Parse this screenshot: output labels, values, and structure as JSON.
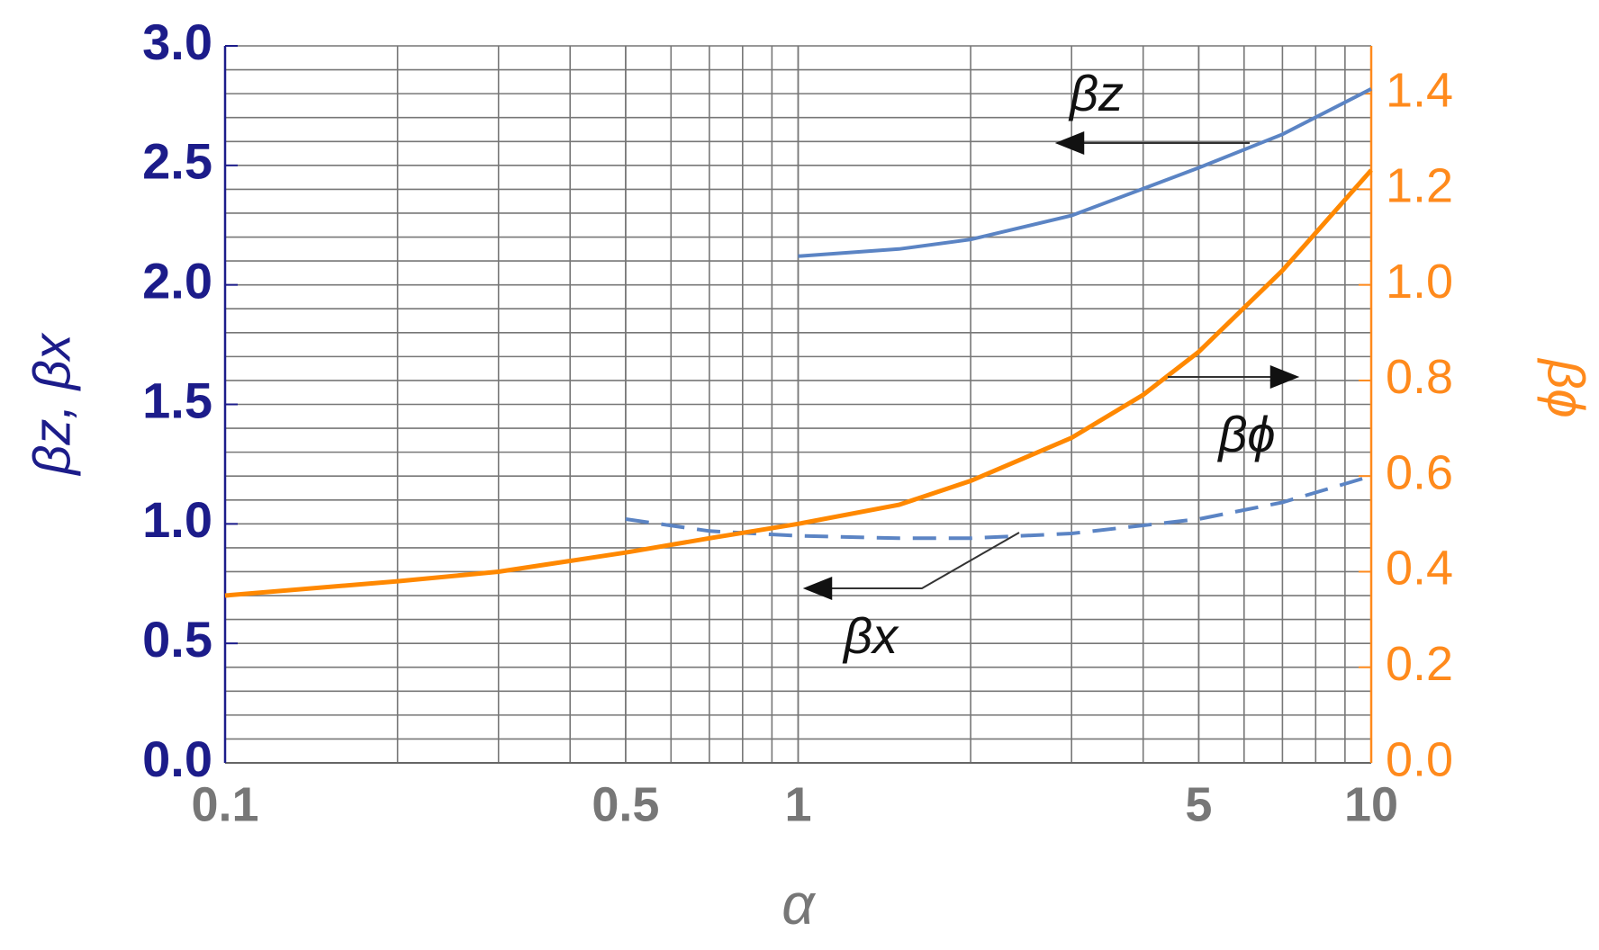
{
  "chart_data": {
    "type": "line",
    "x_label": "α",
    "y_label": "βz, βx",
    "y2_label": "βϕ",
    "xscale": "log",
    "xlim": [
      0.1,
      10
    ],
    "xticks": [
      0.1,
      0.5,
      1,
      5,
      10
    ],
    "ylim": [
      0,
      3
    ],
    "yticks": [
      {
        "value": 0,
        "label": "0.0"
      },
      0.5,
      {
        "value": 1,
        "label": "1.0"
      },
      1.5,
      {
        "value": 2,
        "label": "2.0"
      },
      2.5,
      {
        "value": 3,
        "label": "3.0"
      }
    ],
    "y2lim": [
      0,
      1.5
    ],
    "y2ticks": [
      {
        "value": 0,
        "label": "0.0"
      },
      0.2,
      0.4,
      0.6,
      0.8,
      {
        "value": 1,
        "label": "1.0"
      },
      1.2,
      1.4
    ],
    "grid": true,
    "y_color": "#1c1c8a",
    "y2_color": "#ff8a1c",
    "series": [
      {
        "name": "βz",
        "color": "#5b84c4",
        "dash": false,
        "x": [
          1,
          1.5,
          2,
          3,
          5,
          7,
          10
        ],
        "values": [
          2.12,
          2.15,
          2.19,
          2.29,
          2.49,
          2.63,
          2.82
        ]
      },
      {
        "name": "βx",
        "color": "#5b84c4",
        "dash": true,
        "x": [
          0.5,
          0.7,
          1,
          1.5,
          2,
          3,
          5,
          7,
          10
        ],
        "values": [
          1.02,
          0.97,
          0.95,
          0.94,
          0.94,
          0.96,
          1.02,
          1.09,
          1.2
        ]
      },
      {
        "name": "βϕ",
        "color": "#ff8800",
        "dash": false,
        "axis": "y2",
        "x": [
          0.1,
          0.2,
          0.3,
          0.5,
          0.7,
          1,
          1.5,
          2,
          3,
          4,
          5,
          7,
          10
        ],
        "values": [
          0.35,
          0.38,
          0.4,
          0.44,
          0.47,
          0.5,
          0.54,
          0.59,
          0.68,
          0.77,
          0.86,
          1.03,
          1.24
        ]
      }
    ]
  }
}
